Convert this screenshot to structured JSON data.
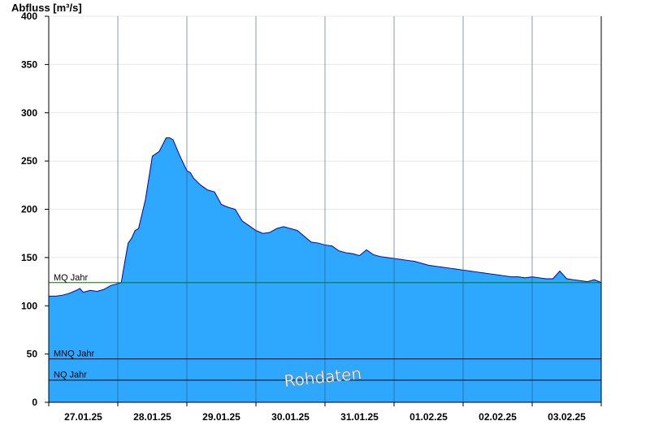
{
  "chart_data": {
    "type": "area",
    "ylabel": "Abfluss [m³/s]",
    "ylim": [
      0,
      400
    ],
    "yticks": [
      0,
      50,
      100,
      150,
      200,
      250,
      300,
      350,
      400
    ],
    "grid": true,
    "x_labels": [
      "27.01.25",
      "28.01.25",
      "29.01.25",
      "30.01.25",
      "31.01.25",
      "01.02.25",
      "02.02.25",
      "03.02.25"
    ],
    "x_range_days": [
      0,
      8
    ],
    "series": [
      {
        "x_days": [
          0,
          0.1,
          0.2,
          0.3,
          0.4,
          0.45,
          0.5,
          0.6,
          0.7,
          0.8,
          0.9,
          1.0,
          1.05,
          1.1,
          1.15,
          1.2,
          1.25,
          1.3,
          1.4,
          1.5,
          1.6,
          1.7,
          1.75,
          1.8,
          1.9,
          2.0,
          2.05,
          2.1,
          2.2,
          2.3,
          2.4,
          2.5,
          2.6,
          2.7,
          2.8,
          2.9,
          3.0,
          3.1,
          3.2,
          3.3,
          3.4,
          3.5,
          3.6,
          3.7,
          3.8,
          3.9,
          4.0,
          4.1,
          4.2,
          4.3,
          4.4,
          4.5,
          4.6,
          4.7,
          4.8,
          4.9,
          5.0,
          5.1,
          5.2,
          5.3,
          5.4,
          5.5,
          5.6,
          5.7,
          5.8,
          5.9,
          6.0,
          6.1,
          6.2,
          6.3,
          6.4,
          6.5,
          6.6,
          6.7,
          6.8,
          6.9,
          7.0,
          7.1,
          7.2,
          7.3,
          7.4,
          7.5,
          7.6,
          7.7,
          7.8,
          7.9,
          8.0
        ],
        "values": [
          110,
          110,
          111,
          113,
          116,
          118,
          114,
          116,
          115,
          117,
          121,
          123,
          124,
          145,
          165,
          170,
          178,
          180,
          210,
          255,
          260,
          274,
          274,
          272,
          255,
          240,
          238,
          232,
          225,
          220,
          218,
          205,
          202,
          200,
          188,
          183,
          178,
          175,
          176,
          180,
          182,
          180,
          178,
          172,
          166,
          165,
          163,
          162,
          157,
          155,
          154,
          152,
          158,
          153,
          151,
          150,
          149,
          148,
          147,
          146,
          144,
          142,
          141,
          140,
          139,
          138,
          137,
          136,
          135,
          134,
          133,
          132,
          131,
          130,
          130,
          129,
          130,
          129,
          128,
          128,
          136,
          128,
          127,
          126,
          125,
          127,
          124
        ],
        "color": "#2ea8ff",
        "line_color": "#0000aa"
      }
    ],
    "reference_lines": [
      {
        "label": "MQ Jahr",
        "value": 124,
        "color": "#007a00"
      },
      {
        "label": "MNQ Jahr",
        "value": 45,
        "color": "#000000"
      },
      {
        "label": "NQ Jahr",
        "value": 23,
        "color": "#000000"
      }
    ],
    "watermark": "Rohdaten"
  }
}
